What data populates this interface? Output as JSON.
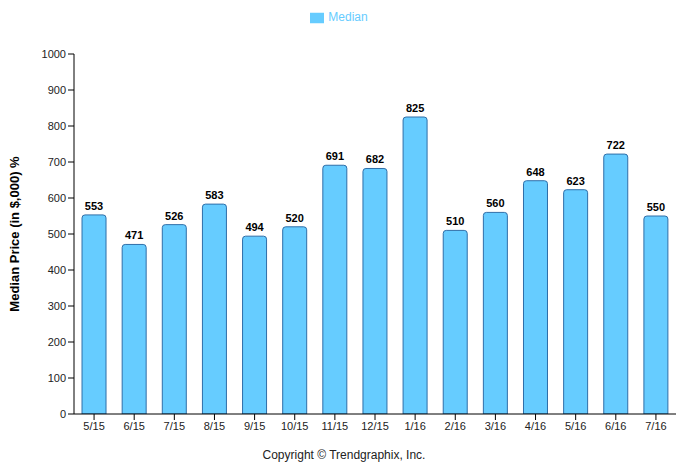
{
  "chart_data": {
    "type": "bar",
    "y_label": "Median Price (in $,000) %",
    "annotation": "Copyright © Trendgraphix, Inc.",
    "categories": [
      "5/15",
      "6/15",
      "7/15",
      "8/15",
      "9/15",
      "10/15",
      "11/15",
      "12/15",
      "1/16",
      "2/16",
      "3/16",
      "4/16",
      "5/16",
      "6/16",
      "7/16"
    ],
    "series": [
      {
        "name": "Median",
        "color": "#66ccff",
        "values": [
          553,
          471,
          526,
          583,
          494,
          520,
          691,
          682,
          825,
          510,
          560,
          648,
          623,
          722,
          550
        ]
      }
    ],
    "ylim": [
      0,
      1000
    ],
    "yticks": [
      0,
      100,
      200,
      300,
      400,
      500,
      600,
      700,
      800,
      900,
      1000
    ],
    "grid": false,
    "legend": "top",
    "data_labels": true
  }
}
